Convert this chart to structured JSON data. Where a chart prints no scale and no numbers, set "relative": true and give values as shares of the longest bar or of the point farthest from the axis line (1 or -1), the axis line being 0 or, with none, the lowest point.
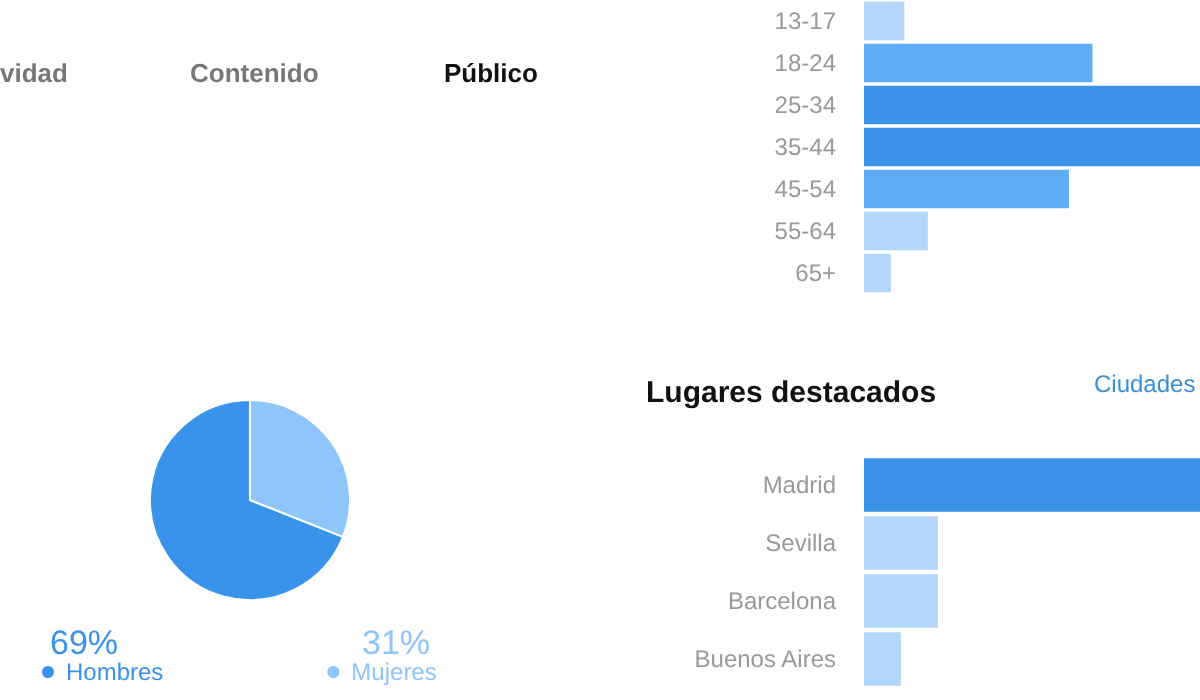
{
  "chart_data": [
    {
      "type": "pie",
      "categories": [
        "Hombres",
        "Mujeres"
      ],
      "values": [
        69,
        31
      ],
      "colors": [
        "#3a93ea",
        "#8ec5fb"
      ],
      "value_labels": [
        "69%",
        "31%"
      ],
      "legend": "bottom",
      "annotations": [
        "vidad",
        "Contenido",
        "Público"
      ]
    },
    {
      "type": "bar",
      "orientation": "horizontal",
      "relative": true,
      "categories": [
        "13-17",
        "18-24",
        "25-34",
        "35-44",
        "45-54",
        "55-64",
        "65+"
      ],
      "values": [
        0.12,
        0.68,
        1,
        1,
        0.61,
        0.19,
        0.08
      ],
      "colors": [
        "#b3d7fb",
        "#5fadf6",
        "#3a93e8",
        "#3a93e8",
        "#5fadf6",
        "#b3d7fb",
        "#b3d7fb"
      ]
    },
    {
      "type": "bar",
      "orientation": "horizontal",
      "relative": true,
      "title": "Lugares destacados",
      "annotations": [
        "Ciudades"
      ],
      "categories": [
        "Madrid",
        "Sevilla",
        "Barcelona",
        "Buenos Aires"
      ],
      "values": [
        1,
        0.22,
        0.22,
        0.11
      ],
      "colors": [
        "#3a93e8",
        "#b3d7fb",
        "#b3d7fb",
        "#b3d7fb"
      ]
    }
  ]
}
